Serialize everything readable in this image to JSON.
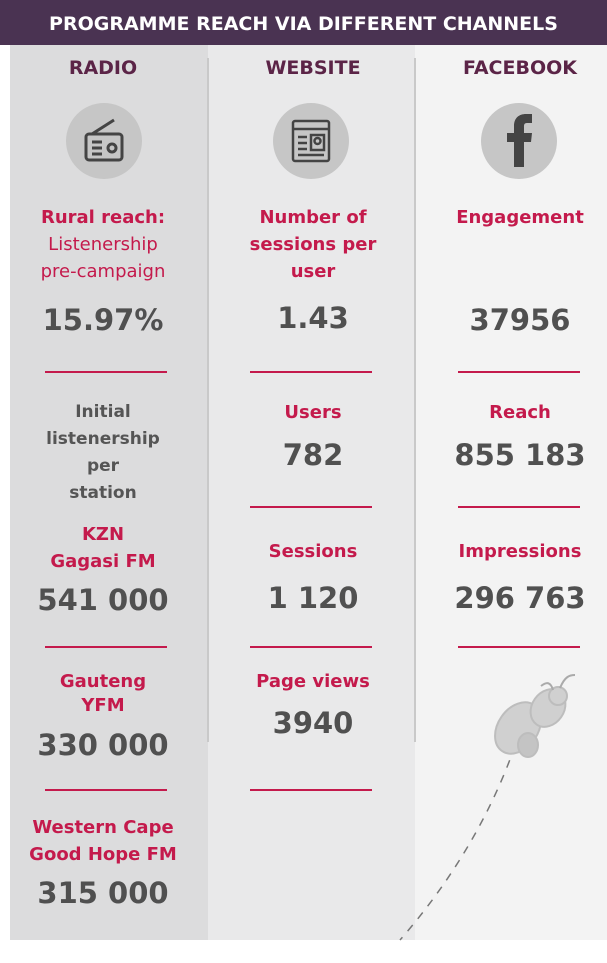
{
  "header": {
    "title": "PROGRAMME REACH VIA DIFFERENT CHANNELS"
  },
  "radio": {
    "heading": "RADIO",
    "rural_label": "Rural reach:",
    "rural_sub": [
      "Listenership",
      "pre-campaign"
    ],
    "rural_value": "15.97%",
    "initial_label": [
      "Initial",
      "listenership",
      "per",
      "station"
    ],
    "stations": [
      {
        "name": [
          "KZN",
          "Gagasi FM"
        ],
        "value": "541 000"
      },
      {
        "name": [
          "Gauteng",
          "YFM"
        ],
        "value": "330 000"
      },
      {
        "name": [
          "Western Cape",
          "Good Hope FM"
        ],
        "value": "315 000"
      }
    ]
  },
  "website": {
    "heading": "WEBSITE",
    "metrics": [
      {
        "label": [
          "Number of",
          "sessions per",
          "user"
        ],
        "value": "1.43"
      },
      {
        "label": [
          "Users"
        ],
        "value": "782"
      },
      {
        "label": [
          "Sessions"
        ],
        "value": "1 120"
      },
      {
        "label": [
          "Page views"
        ],
        "value": "3940"
      }
    ]
  },
  "facebook": {
    "heading": "FACEBOOK",
    "metrics": [
      {
        "label": [
          "Engagement"
        ],
        "value": "37956"
      },
      {
        "label": [
          "Reach"
        ],
        "value": "855 183"
      },
      {
        "label": [
          "Impressions"
        ],
        "value": "296 763"
      }
    ]
  }
}
